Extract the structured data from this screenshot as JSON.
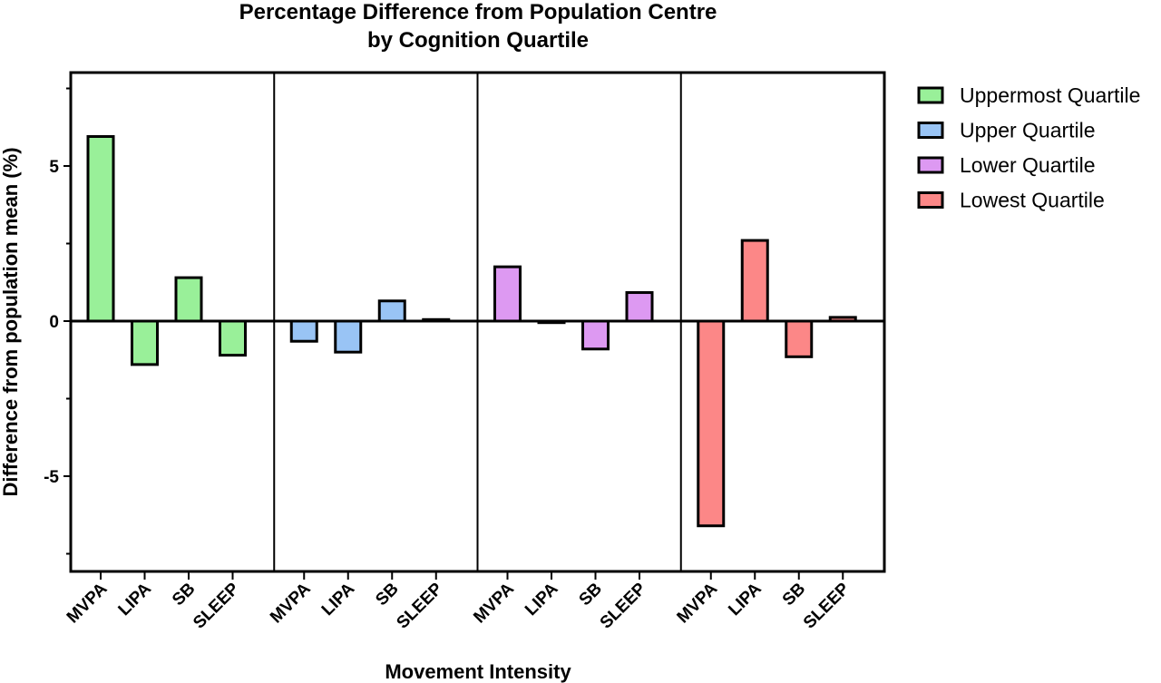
{
  "chart_data": {
    "type": "bar",
    "title": [
      "Percentage Difference from Population Centre",
      "by Cognition Quartile"
    ],
    "xlabel": "Movement Intensity",
    "ylabel": "Difference from population mean  (%)",
    "ylim": [
      -8,
      8
    ],
    "yticks": [
      {
        "value": 5,
        "label": "5"
      },
      {
        "value": 0,
        "label": "0"
      },
      {
        "value": -5,
        "label": "-5"
      }
    ],
    "categories": [
      "MVPA",
      "LIPA",
      "SB",
      "SLEEP"
    ],
    "grid": false,
    "legend_position": "right",
    "series": [
      {
        "name": "Uppermost Quartile",
        "color": "#99f099",
        "values": [
          5.95,
          -1.4,
          1.4,
          -1.1
        ]
      },
      {
        "name": "Upper Quartile",
        "color": "#99c4f5",
        "values": [
          -0.65,
          -1.0,
          0.65,
          0.05
        ]
      },
      {
        "name": "Lower Quartile",
        "color": "#dd99f2",
        "values": [
          1.75,
          -0.05,
          -0.9,
          0.92
        ]
      },
      {
        "name": "Lowest Quartile",
        "color": "#fc8787",
        "values": [
          -6.6,
          2.6,
          -1.15,
          0.12
        ]
      }
    ]
  }
}
